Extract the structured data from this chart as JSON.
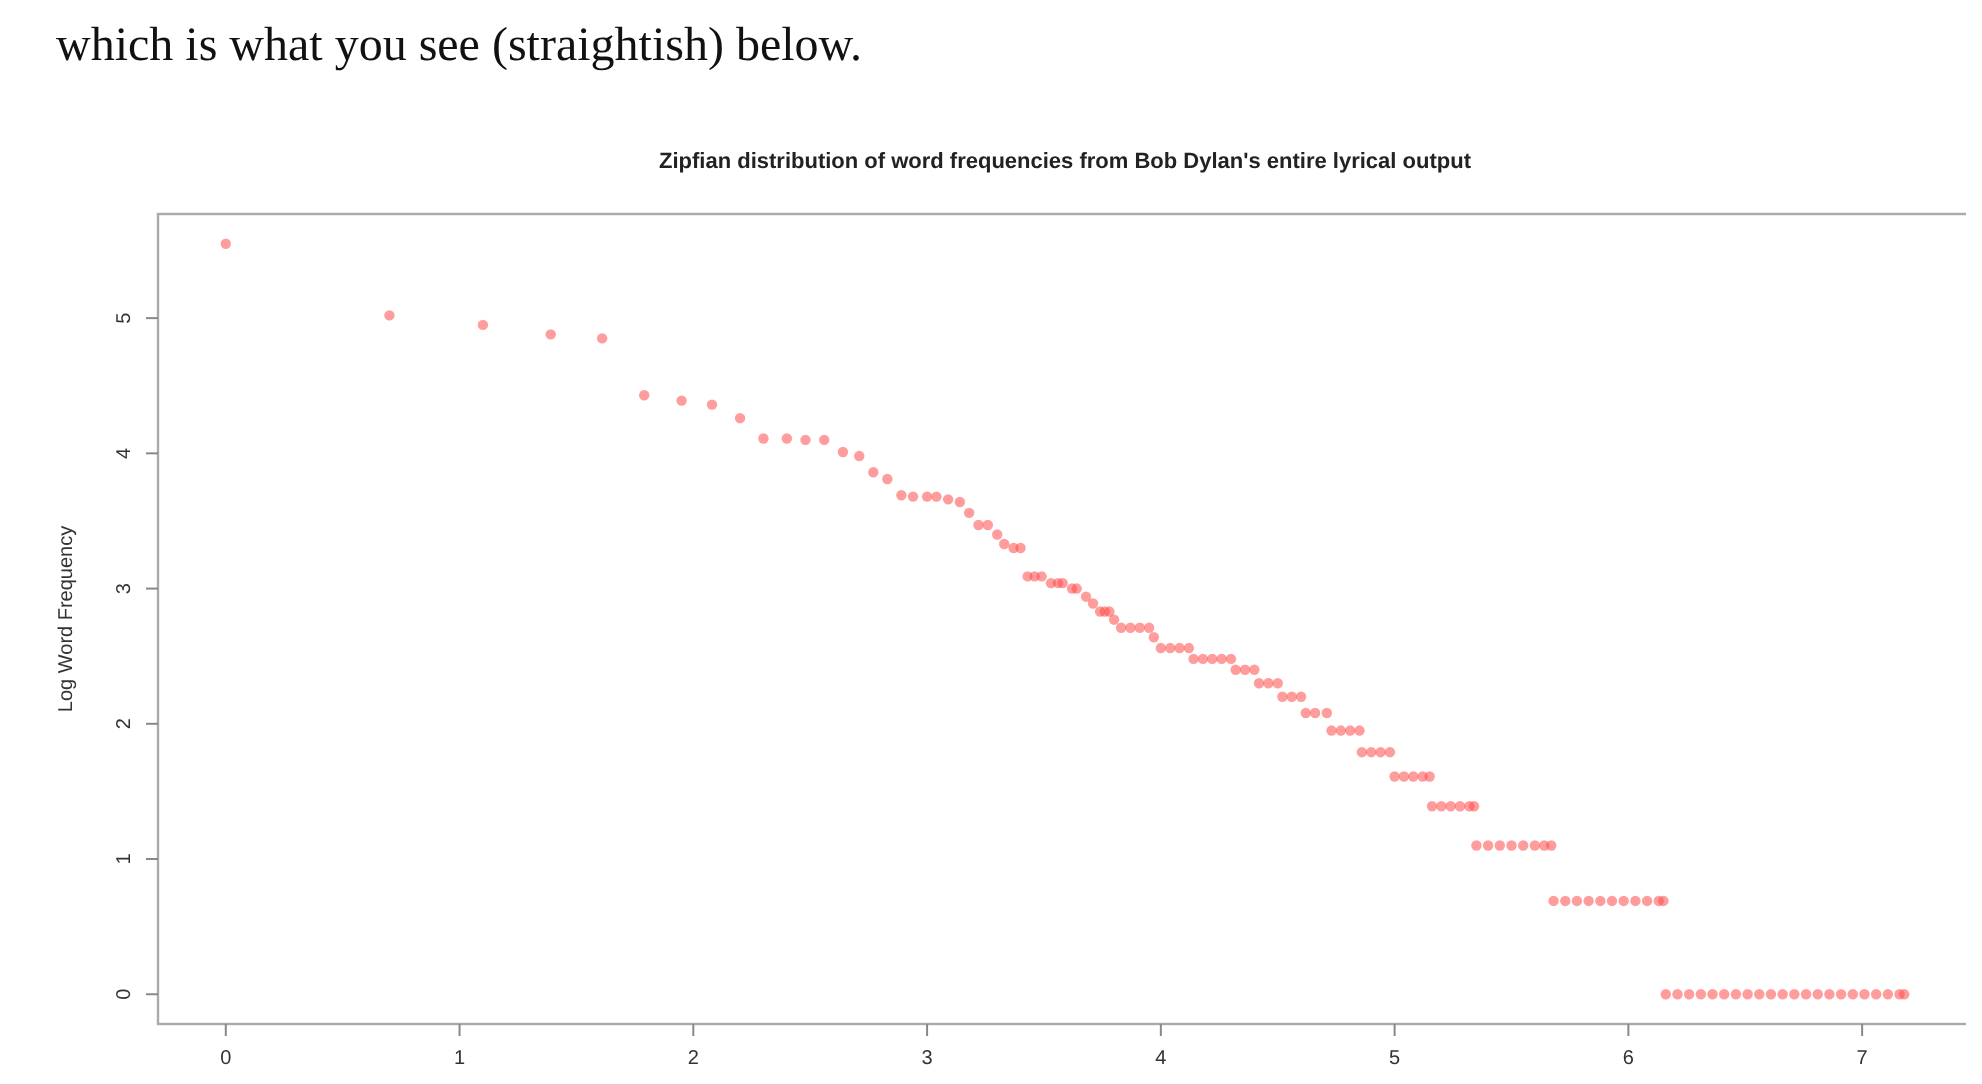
{
  "chart_data": {
    "type": "scatter",
    "title": "Zipfian distribution of word frequencies from Bob Dylan's entire lyrical output",
    "ylabel": "Log Word Frequency",
    "annotations": [
      "which is what you see (straightish) below."
    ],
    "xlim": [
      -0.29,
      7.47
    ],
    "ylim": [
      -0.22,
      5.77
    ],
    "xticks": [
      0,
      1,
      2,
      3,
      4,
      5,
      6,
      7
    ],
    "yticks": [
      0,
      1,
      2,
      3,
      4,
      5
    ],
    "grid": false,
    "marker": "circle",
    "series": [
      {
        "color": "#ff4d4d",
        "x": [
          0.0,
          0.7,
          1.1,
          1.39,
          1.61,
          1.79,
          1.95,
          2.08,
          2.2,
          2.3,
          2.4,
          2.48,
          2.56,
          2.64,
          2.71,
          2.77,
          2.83,
          2.89,
          2.94,
          3.0,
          3.04,
          3.09,
          3.14,
          3.18,
          3.22,
          3.26,
          3.3,
          3.33,
          3.37,
          3.4,
          3.43,
          3.46,
          3.49,
          3.53,
          3.56,
          3.58,
          3.62,
          3.64,
          3.68,
          3.71,
          3.74,
          3.76,
          3.78,
          3.8,
          3.83,
          3.87,
          3.91,
          3.95,
          3.97,
          4.0,
          4.04,
          4.08,
          4.12,
          4.14,
          4.18,
          4.22,
          4.26,
          4.3,
          4.32,
          4.36,
          4.4,
          4.42,
          4.46,
          4.5,
          4.52,
          4.56,
          4.6,
          4.62,
          4.66,
          4.71,
          4.73,
          4.77,
          4.81,
          4.85,
          4.86,
          4.9,
          4.94,
          4.98,
          5.0,
          5.04,
          5.08,
          5.12,
          5.15,
          5.16,
          5.2,
          5.24,
          5.28,
          5.32,
          5.34,
          5.35,
          5.4,
          5.45,
          5.5,
          5.55,
          5.6,
          5.64,
          5.67,
          5.68,
          5.73,
          5.78,
          5.83,
          5.88,
          5.93,
          5.98,
          6.03,
          6.08,
          6.13,
          6.15,
          6.16,
          6.21,
          6.26,
          6.31,
          6.36,
          6.41,
          6.46,
          6.51,
          6.56,
          6.61,
          6.66,
          6.71,
          6.76,
          6.81,
          6.86,
          6.91,
          6.96,
          7.01,
          7.06,
          7.11,
          7.16,
          7.18
        ],
        "values": [
          5.55,
          5.02,
          4.95,
          4.88,
          4.85,
          4.43,
          4.39,
          4.36,
          4.26,
          4.11,
          4.11,
          4.1,
          4.1,
          4.01,
          3.98,
          3.86,
          3.81,
          3.69,
          3.68,
          3.68,
          3.68,
          3.66,
          3.64,
          3.56,
          3.47,
          3.47,
          3.4,
          3.33,
          3.3,
          3.3,
          3.09,
          3.09,
          3.09,
          3.04,
          3.04,
          3.04,
          3.0,
          3.0,
          2.94,
          2.89,
          2.83,
          2.83,
          2.83,
          2.77,
          2.71,
          2.71,
          2.71,
          2.71,
          2.64,
          2.56,
          2.56,
          2.56,
          2.56,
          2.48,
          2.48,
          2.48,
          2.48,
          2.48,
          2.4,
          2.4,
          2.4,
          2.3,
          2.3,
          2.3,
          2.2,
          2.2,
          2.2,
          2.08,
          2.08,
          2.08,
          1.95,
          1.95,
          1.95,
          1.95,
          1.79,
          1.79,
          1.79,
          1.79,
          1.61,
          1.61,
          1.61,
          1.61,
          1.61,
          1.39,
          1.39,
          1.39,
          1.39,
          1.39,
          1.39,
          1.1,
          1.1,
          1.1,
          1.1,
          1.1,
          1.1,
          1.1,
          1.1,
          0.69,
          0.69,
          0.69,
          0.69,
          0.69,
          0.69,
          0.69,
          0.69,
          0.69,
          0.69,
          0.69,
          0,
          0,
          0,
          0,
          0,
          0,
          0,
          0,
          0,
          0,
          0,
          0,
          0,
          0,
          0,
          0,
          0,
          0,
          0,
          0,
          0,
          0
        ]
      }
    ]
  }
}
